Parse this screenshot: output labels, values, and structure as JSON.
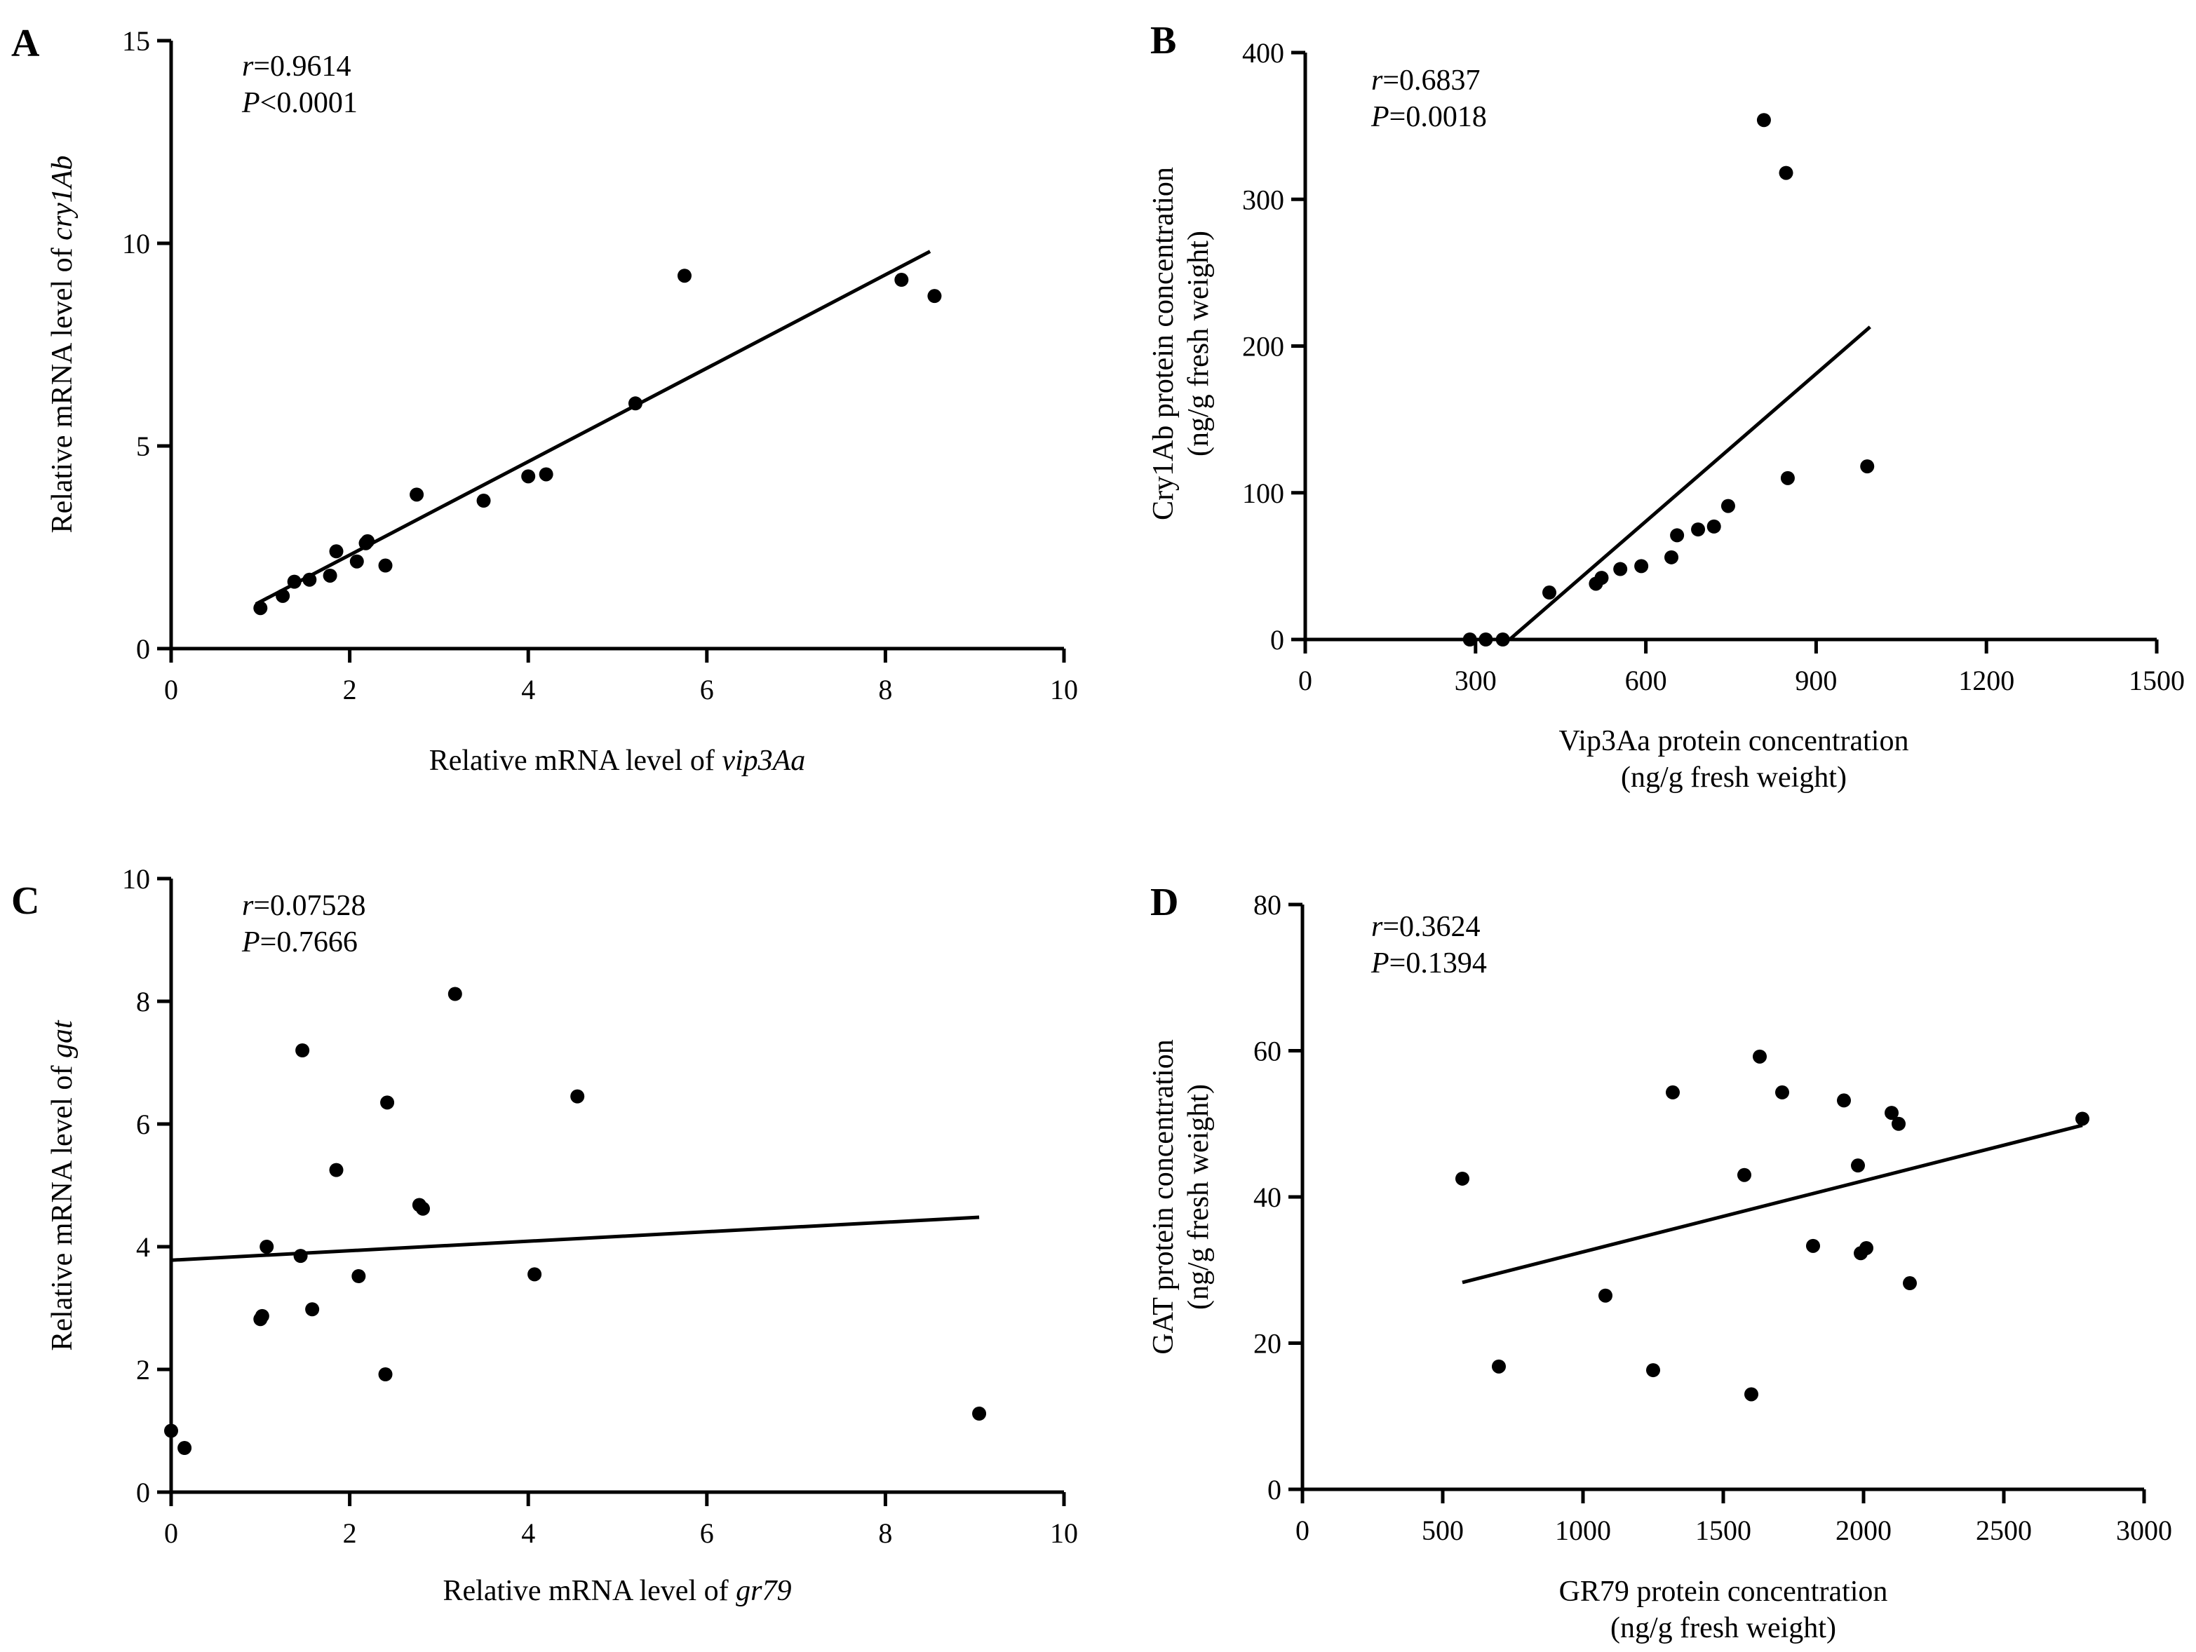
{
  "chart_data": [
    {
      "id": "A",
      "type": "scatter",
      "panel_label": "A",
      "xlabel_prefix": "Relative mRNA level of ",
      "xlabel_italic": "vip3Aa",
      "xlabel_line2": "",
      "ylabel_prefix": "Relative mRNA level of ",
      "ylabel_italic": "cry1Ab",
      "ylabel_line2": "",
      "xlim": [
        0,
        10
      ],
      "ylim": [
        0,
        15
      ],
      "xticks": [
        0,
        2,
        4,
        6,
        8,
        10
      ],
      "yticks": [
        0,
        5,
        10,
        15
      ],
      "stat_r_label": "r",
      "stat_r_value": "=0.9614",
      "stat_p_label": "P",
      "stat_p_value": "<0.0001",
      "points": [
        [
          1.0,
          1.0
        ],
        [
          1.25,
          1.3
        ],
        [
          1.38,
          1.65
        ],
        [
          1.55,
          1.7
        ],
        [
          1.78,
          1.8
        ],
        [
          1.85,
          2.4
        ],
        [
          2.08,
          2.15
        ],
        [
          2.18,
          2.6
        ],
        [
          2.2,
          2.65
        ],
        [
          2.4,
          2.05
        ],
        [
          2.75,
          3.8
        ],
        [
          3.5,
          3.65
        ],
        [
          4.0,
          4.25
        ],
        [
          4.2,
          4.3
        ],
        [
          5.2,
          6.05
        ],
        [
          5.75,
          9.2
        ],
        [
          8.18,
          9.1
        ],
        [
          8.55,
          8.7
        ]
      ],
      "fit": [
        [
          0.95,
          1.1
        ],
        [
          8.5,
          9.8
        ]
      ]
    },
    {
      "id": "B",
      "type": "scatter",
      "panel_label": "B",
      "xlabel_prefix": "Vip3Aa protein concentration",
      "xlabel_italic": "",
      "xlabel_line2": "(ng/g fresh weight)",
      "ylabel_prefix": "Cry1Ab protein concentration",
      "ylabel_italic": "",
      "ylabel_line2": "(ng/g fresh weight)",
      "xlim": [
        0,
        1500
      ],
      "ylim": [
        0,
        400
      ],
      "xticks": [
        0,
        300,
        600,
        900,
        1200,
        1500
      ],
      "yticks": [
        0,
        100,
        200,
        300,
        400
      ],
      "stat_r_label": "r",
      "stat_r_value": "=0.6837",
      "stat_p_label": "P",
      "stat_p_value": "=0.0018",
      "points": [
        [
          290,
          0
        ],
        [
          318,
          0
        ],
        [
          348,
          0
        ],
        [
          430,
          32
        ],
        [
          512,
          38
        ],
        [
          522,
          42
        ],
        [
          555,
          48
        ],
        [
          592,
          50
        ],
        [
          645,
          56
        ],
        [
          655,
          71
        ],
        [
          692,
          75
        ],
        [
          720,
          77
        ],
        [
          745,
          91
        ],
        [
          808,
          354
        ],
        [
          847,
          318
        ],
        [
          850,
          110
        ],
        [
          990,
          118
        ]
      ],
      "fit": [
        [
          360,
          0
        ],
        [
          995,
          213
        ]
      ]
    },
    {
      "id": "C",
      "type": "scatter",
      "panel_label": "C",
      "xlabel_prefix": "Relative mRNA level of ",
      "xlabel_italic": "gr79",
      "xlabel_line2": "",
      "ylabel_prefix": "Relative mRNA level of ",
      "ylabel_italic": "gat",
      "ylabel_line2": "",
      "xlim": [
        0,
        10
      ],
      "ylim": [
        0,
        10
      ],
      "xticks": [
        0,
        2,
        4,
        6,
        8,
        10
      ],
      "yticks": [
        0,
        2,
        4,
        6,
        8,
        10
      ],
      "stat_r_label": "r",
      "stat_r_value": "=0.07528",
      "stat_p_label": "P",
      "stat_p_value": "=0.7666",
      "points": [
        [
          0.0,
          1.0
        ],
        [
          0.15,
          0.72
        ],
        [
          1.0,
          2.82
        ],
        [
          1.02,
          2.87
        ],
        [
          1.07,
          4.0
        ],
        [
          1.45,
          3.85
        ],
        [
          1.47,
          7.2
        ],
        [
          1.58,
          2.98
        ],
        [
          1.85,
          5.25
        ],
        [
          2.1,
          3.52
        ],
        [
          2.4,
          1.92
        ],
        [
          2.42,
          6.35
        ],
        [
          2.78,
          4.68
        ],
        [
          2.82,
          4.62
        ],
        [
          3.18,
          8.12
        ],
        [
          4.07,
          3.55
        ],
        [
          4.55,
          6.45
        ],
        [
          9.05,
          1.28
        ]
      ],
      "fit": [
        [
          0.0,
          3.78
        ],
        [
          9.05,
          4.48
        ]
      ]
    },
    {
      "id": "D",
      "type": "scatter",
      "panel_label": "D",
      "xlabel_prefix": "GR79 protein concentration",
      "xlabel_italic": "",
      "xlabel_line2": "(ng/g fresh weight)",
      "ylabel_prefix": "GAT protein concentration",
      "ylabel_italic": "",
      "ylabel_line2": "(ng/g fresh weight)",
      "xlim": [
        0,
        3000
      ],
      "ylim": [
        0,
        80
      ],
      "xticks": [
        0,
        500,
        1000,
        1500,
        2000,
        2500,
        3000
      ],
      "yticks": [
        0,
        20,
        40,
        60,
        80
      ],
      "stat_r_label": "r",
      "stat_r_value": "=0.3624",
      "stat_p_label": "P",
      "stat_p_value": "=0.1394",
      "points": [
        [
          570,
          42.5
        ],
        [
          700,
          16.8
        ],
        [
          1080,
          26.5
        ],
        [
          1250,
          16.3
        ],
        [
          1320,
          54.3
        ],
        [
          1575,
          43.0
        ],
        [
          1600,
          13.0
        ],
        [
          1630,
          59.2
        ],
        [
          1710,
          54.3
        ],
        [
          1820,
          33.3
        ],
        [
          1930,
          53.2
        ],
        [
          1980,
          44.3
        ],
        [
          1990,
          32.3
        ],
        [
          2010,
          33.0
        ],
        [
          2100,
          51.5
        ],
        [
          2125,
          50.0
        ],
        [
          2165,
          28.2
        ],
        [
          2780,
          50.7
        ]
      ],
      "fit": [
        [
          570,
          28.3
        ],
        [
          2780,
          49.8
        ]
      ]
    }
  ]
}
